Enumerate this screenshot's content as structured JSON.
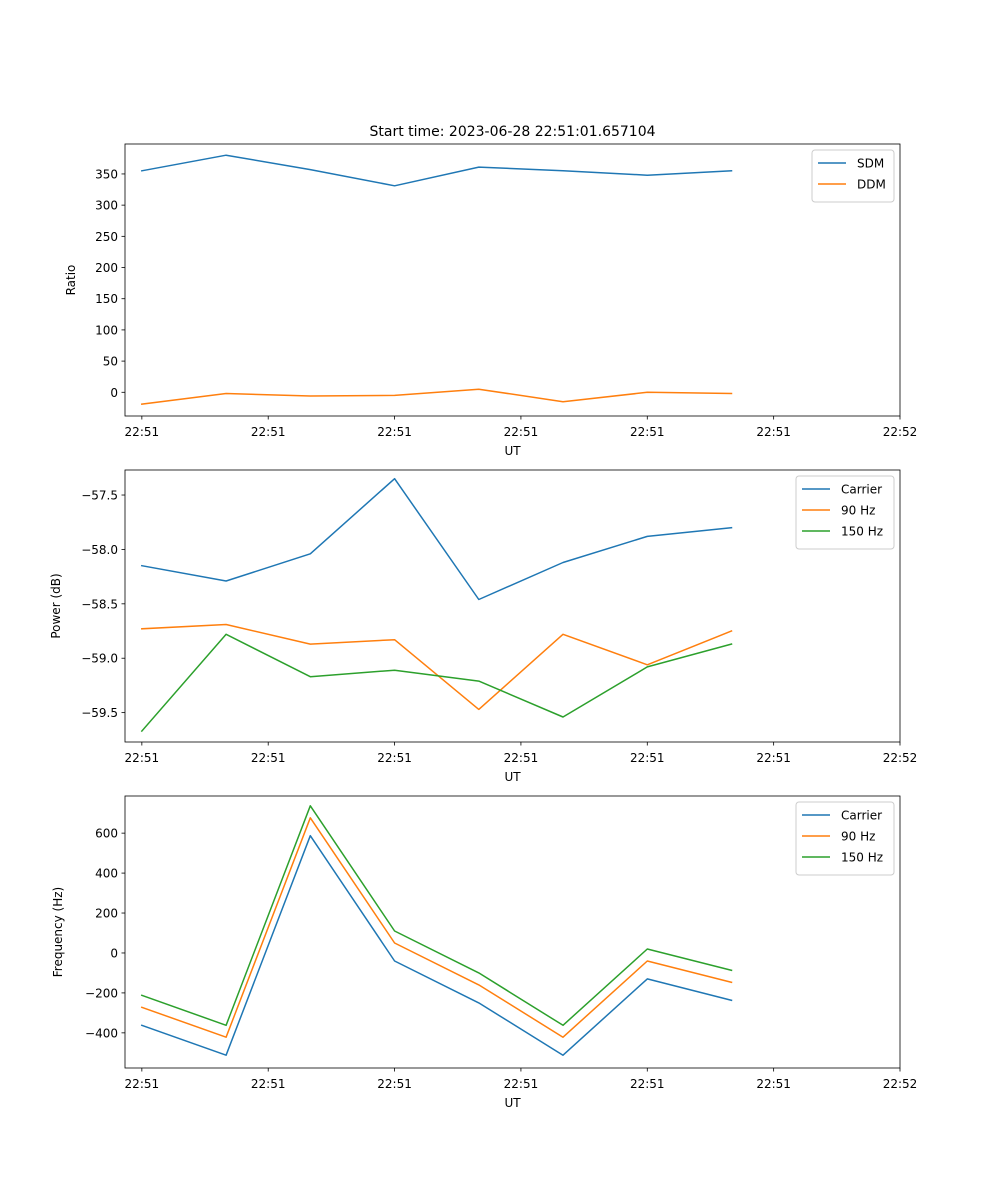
{
  "figure": {
    "title": "Start time: 2023-06-28 22:51:01.657104"
  },
  "chart_data": [
    {
      "type": "line",
      "xlabel": "UT",
      "ylabel": "Ratio",
      "x": [
        1,
        2,
        3,
        4,
        5,
        6,
        7,
        8
      ],
      "xlim": [
        0.8,
        10.0
      ],
      "ylim": [
        -38,
        398
      ],
      "xticks": [
        1.0,
        2.5,
        4.0,
        5.5,
        7.0,
        8.5,
        10.0
      ],
      "xtick_labels": [
        "22:51",
        "22:51",
        "22:51",
        "22:51",
        "22:51",
        "22:51",
        "22:52"
      ],
      "yticks": [
        0,
        50,
        100,
        150,
        200,
        250,
        300,
        350
      ],
      "ytick_labels": [
        "0",
        "50",
        "100",
        "150",
        "200",
        "250",
        "300",
        "350"
      ],
      "legend": "top-right",
      "grid": false,
      "series": [
        {
          "name": "SDM",
          "color": "#1f77b4",
          "values": [
            355,
            380,
            357,
            331,
            361,
            355,
            348,
            355
          ]
        },
        {
          "name": "DDM",
          "color": "#ff7f0e",
          "values": [
            -19,
            -2,
            -6,
            -5,
            5,
            -15,
            0,
            -2
          ]
        }
      ]
    },
    {
      "type": "line",
      "xlabel": "UT",
      "ylabel": "Power (dB)",
      "x": [
        1,
        2,
        3,
        4,
        5,
        6,
        7,
        8
      ],
      "xlim": [
        0.8,
        10.0
      ],
      "ylim": [
        -59.77,
        -57.27
      ],
      "xticks": [
        1.0,
        2.5,
        4.0,
        5.5,
        7.0,
        8.5,
        10.0
      ],
      "xtick_labels": [
        "22:51",
        "22:51",
        "22:51",
        "22:51",
        "22:51",
        "22:51",
        "22:52"
      ],
      "yticks": [
        -57.5,
        -58.0,
        -58.5,
        -59.0,
        -59.5
      ],
      "ytick_labels": [
        "−57.5",
        "−58.0",
        "−58.5",
        "−59.0",
        "−59.5"
      ],
      "legend": "top-right",
      "grid": false,
      "series": [
        {
          "name": "Carrier",
          "color": "#1f77b4",
          "values": [
            -58.15,
            -58.29,
            -58.04,
            -57.35,
            -58.46,
            -58.12,
            -57.88,
            -57.8
          ]
        },
        {
          "name": "90 Hz",
          "color": "#ff7f0e",
          "values": [
            -58.73,
            -58.69,
            -58.87,
            -58.83,
            -59.47,
            -58.78,
            -59.06,
            -58.75
          ]
        },
        {
          "name": "150 Hz",
          "color": "#2ca02c",
          "values": [
            -59.67,
            -58.78,
            -59.17,
            -59.11,
            -59.21,
            -59.54,
            -59.08,
            -58.87
          ]
        }
      ]
    },
    {
      "type": "line",
      "xlabel": "UT",
      "ylabel": "Frequency (Hz)",
      "x": [
        1,
        2,
        3,
        4,
        5,
        6,
        7,
        8
      ],
      "xlim": [
        0.8,
        10.0
      ],
      "ylim": [
        -576,
        786
      ],
      "xticks": [
        1.0,
        2.5,
        4.0,
        5.5,
        7.0,
        8.5,
        10.0
      ],
      "xtick_labels": [
        "22:51",
        "22:51",
        "22:51",
        "22:51",
        "22:51",
        "22:51",
        "22:52"
      ],
      "yticks": [
        -400,
        -200,
        0,
        200,
        400,
        600
      ],
      "ytick_labels": [
        "−400",
        "−200",
        "0",
        "200",
        "400",
        "600"
      ],
      "legend": "top-right",
      "grid": false,
      "series": [
        {
          "name": "Carrier",
          "color": "#1f77b4",
          "values": [
            -362,
            -512,
            587,
            -40,
            -250,
            -512,
            -130,
            -237
          ]
        },
        {
          "name": "90 Hz",
          "color": "#ff7f0e",
          "values": [
            -272,
            -422,
            677,
            50,
            -160,
            -422,
            -40,
            -147
          ]
        },
        {
          "name": "150 Hz",
          "color": "#2ca02c",
          "values": [
            -212,
            -362,
            737,
            110,
            -100,
            -362,
            20,
            -87
          ]
        }
      ]
    }
  ]
}
